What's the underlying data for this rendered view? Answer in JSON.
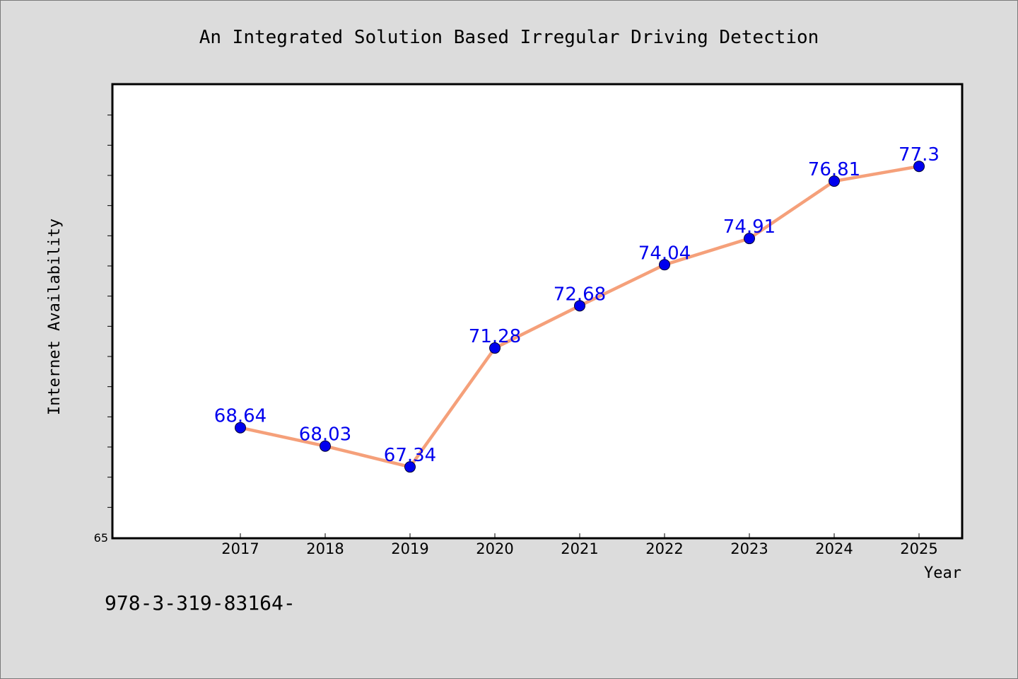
{
  "chart_data": {
    "type": "line",
    "title": "An Integrated Solution Based Irregular Driving Detection",
    "xlabel": "Year",
    "ylabel": "Internet Availability",
    "categories": [
      "2017",
      "2018",
      "2019",
      "2020",
      "2021",
      "2022",
      "2023",
      "2024",
      "2025"
    ],
    "values": [
      68.64,
      68.03,
      67.34,
      71.28,
      72.68,
      74.04,
      74.91,
      76.81,
      77.3
    ],
    "data_labels": [
      "68.64",
      "68.03",
      "67.34",
      "71.28",
      "72.68",
      "74.04",
      "74.91",
      "76.81",
      "77.3"
    ],
    "ylim": [
      65,
      80
    ],
    "y_tick_label": "65",
    "grid": false,
    "colors": {
      "line": "#f5a07a",
      "marker": "#0000ee",
      "label": "#0000ee"
    }
  },
  "footer": {
    "text": "978-3-319-83164-"
  }
}
